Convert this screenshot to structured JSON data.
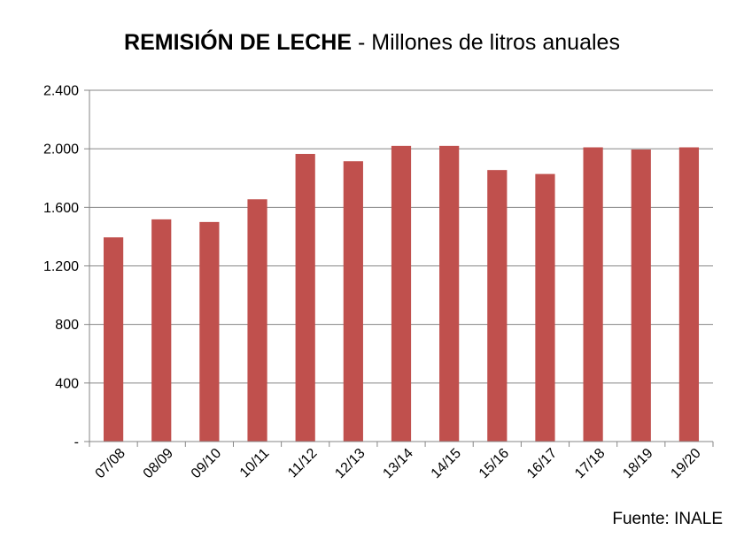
{
  "title": {
    "bold_part": "REMISIÓN DE LECHE",
    "rest": " - Millones de litros anuales"
  },
  "source": "Fuente: INALE",
  "colors": {
    "bar": "#c0504d",
    "grid": "#868686",
    "axis": "#868686"
  },
  "chart_data": {
    "type": "bar",
    "title": "REMISIÓN DE LECHE - Millones de litros anuales",
    "xlabel": "",
    "ylabel": "",
    "categories": [
      "07/08",
      "08/09",
      "09/10",
      "10/11",
      "11/12",
      "12/13",
      "13/14",
      "14/15",
      "15/16",
      "16/17",
      "17/18",
      "18/19",
      "19/20"
    ],
    "values": [
      1395,
      1518,
      1500,
      1655,
      1965,
      1915,
      2020,
      2020,
      1855,
      1828,
      2010,
      1995,
      2010
    ],
    "ylim": [
      0,
      2400
    ],
    "yticks": [
      0,
      400,
      800,
      1200,
      1600,
      2000,
      2400
    ],
    "ytick_labels": [
      "-",
      "400",
      "800",
      "1.200",
      "1.600",
      "2.000",
      "2.400"
    ],
    "grid": true,
    "legend": "none"
  }
}
